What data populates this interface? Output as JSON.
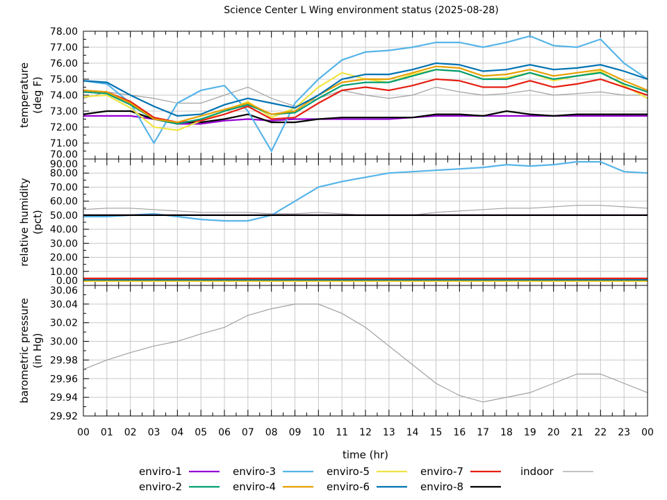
{
  "chart_data": {
    "type": "line",
    "title": "Science Center L Wing environment status (2025-08-28)",
    "xlabel": "time (hr)",
    "x_tick_labels": [
      "00",
      "01",
      "02",
      "03",
      "04",
      "05",
      "06",
      "07",
      "08",
      "09",
      "10",
      "11",
      "12",
      "13",
      "14",
      "15",
      "16",
      "17",
      "18",
      "19",
      "20",
      "21",
      "22",
      "23",
      "00"
    ],
    "x": [
      0,
      1,
      2,
      3,
      4,
      5,
      6,
      7,
      8,
      9,
      10,
      11,
      12,
      13,
      14,
      15,
      16,
      17,
      18,
      19,
      20,
      21,
      22,
      23,
      24
    ],
    "grid": true,
    "legend_position": "bottom",
    "colors": {
      "enviro-1": "#9400d3",
      "enviro-2": "#009e73",
      "enviro-3": "#56b4e9",
      "enviro-4": "#e69f00",
      "enviro-5": "#f0e442",
      "enviro-6": "#0072b2",
      "enviro-7": "#e51e10",
      "enviro-8": "#000000",
      "indoor": "#a0a0a0"
    },
    "legend": [
      "enviro-1",
      "enviro-2",
      "enviro-3",
      "enviro-4",
      "enviro-5",
      "enviro-6",
      "enviro-7",
      "enviro-8",
      "indoor"
    ],
    "panels": [
      {
        "ylabel": [
          "temperature",
          "(deg F)"
        ],
        "ylim": [
          70,
          78
        ],
        "ticks": [
          "70.00",
          "71.00",
          "72.00",
          "73.00",
          "74.00",
          "75.00",
          "76.00",
          "77.00",
          "78.00"
        ],
        "series": [
          {
            "name": "indoor",
            "values": [
              73.8,
              74.2,
              74.0,
              73.8,
              73.5,
              73.5,
              74.0,
              74.5,
              73.8,
              73.3,
              73.8,
              74.3,
              74.0,
              73.8,
              74.0,
              74.5,
              74.2,
              74.0,
              74.1,
              74.3,
              74.0,
              74.1,
              74.2,
              74.0,
              74.0
            ]
          },
          {
            "name": "enviro-1",
            "values": [
              72.7,
              72.7,
              72.7,
              72.5,
              72.2,
              72.2,
              72.4,
              72.5,
              72.4,
              72.5,
              72.5,
              72.5,
              72.5,
              72.5,
              72.6,
              72.7,
              72.7,
              72.7,
              72.7,
              72.7,
              72.7,
              72.7,
              72.7,
              72.7,
              72.7
            ]
          },
          {
            "name": "enviro-8",
            "values": [
              72.8,
              73.0,
              73.0,
              72.5,
              72.3,
              72.3,
              72.5,
              72.8,
              72.3,
              72.3,
              72.5,
              72.6,
              72.6,
              72.6,
              72.6,
              72.8,
              72.8,
              72.7,
              73.0,
              72.8,
              72.7,
              72.8,
              72.8,
              72.8,
              72.8
            ]
          },
          {
            "name": "enviro-3",
            "values": [
              74.9,
              74.7,
              73.5,
              71.0,
              73.5,
              74.3,
              74.6,
              73.0,
              70.5,
              73.5,
              75.0,
              76.2,
              76.7,
              76.8,
              77.0,
              77.3,
              77.3,
              77.0,
              77.3,
              77.7,
              77.1,
              77.0,
              77.5,
              76.0,
              75.0
            ]
          },
          {
            "name": "enviro-5",
            "values": [
              73.9,
              74.0,
              73.2,
              72.0,
              71.8,
              72.4,
              73.0,
              73.6,
              72.6,
              73.2,
              74.5,
              75.4,
              75.0,
              74.8,
              75.3,
              75.6,
              75.5,
              75.0,
              75.1,
              75.4,
              74.9,
              75.2,
              75.5,
              74.6,
              73.8
            ]
          },
          {
            "name": "enviro-7",
            "values": [
              74.3,
              74.2,
              73.6,
              72.6,
              72.3,
              72.4,
              72.8,
              73.3,
              72.5,
              72.6,
              73.5,
              74.3,
              74.5,
              74.3,
              74.6,
              75.0,
              74.9,
              74.5,
              74.5,
              74.9,
              74.5,
              74.7,
              75.0,
              74.5,
              74.0
            ]
          },
          {
            "name": "enviro-2",
            "values": [
              74.2,
              74.1,
              73.4,
              72.5,
              72.2,
              72.5,
              73.0,
              73.4,
              72.8,
              72.9,
              73.8,
              74.6,
              74.8,
              74.8,
              75.2,
              75.6,
              75.5,
              75.0,
              75.0,
              75.4,
              75.0,
              75.2,
              75.4,
              74.7,
              74.2
            ]
          },
          {
            "name": "enviro-4",
            "values": [
              74.3,
              74.2,
              73.5,
              72.5,
              72.3,
              72.7,
              73.1,
              73.5,
              72.8,
              73.0,
              74.0,
              74.8,
              75.0,
              75.0,
              75.4,
              75.8,
              75.7,
              75.2,
              75.3,
              75.6,
              75.2,
              75.4,
              75.6,
              74.9,
              74.3
            ]
          },
          {
            "name": "enviro-6",
            "values": [
              74.9,
              74.8,
              74.0,
              73.3,
              72.7,
              72.8,
              73.4,
              73.8,
              73.5,
              73.2,
              74.0,
              75.0,
              75.3,
              75.3,
              75.6,
              76.0,
              75.9,
              75.5,
              75.6,
              75.9,
              75.6,
              75.7,
              75.9,
              75.5,
              75.0
            ]
          }
        ]
      },
      {
        "ylabel": [
          "relative humidity",
          "(pct)"
        ],
        "ylim": [
          0,
          90
        ],
        "ticks": [
          "0.00",
          "10.00",
          "20.00",
          "30.00",
          "40.00",
          "50.00",
          "60.00",
          "70.00",
          "80.00",
          "90.00"
        ],
        "series": [
          {
            "name": "indoor",
            "values": [
              54,
              55,
              55,
              54,
              53,
              52,
              52,
              52,
              51,
              51,
              52,
              51,
              50,
              50,
              50,
              52,
              53,
              54,
              55,
              55,
              56,
              57,
              57,
              56,
              55
            ]
          },
          {
            "name": "enviro-3",
            "values": [
              49,
              49,
              50,
              51,
              49,
              47,
              46,
              46,
              50,
              60,
              70,
              74,
              77,
              80,
              81,
              82,
              83,
              84,
              86,
              85,
              86,
              88,
              88,
              81,
              80
            ]
          },
          {
            "name": "enviro-1",
            "values": [
              50,
              50,
              50,
              50,
              50,
              50,
              50,
              50,
              50,
              50,
              50,
              50,
              50,
              50,
              50,
              50,
              50,
              50,
              50,
              50,
              50,
              50,
              50,
              50,
              50
            ]
          },
          {
            "name": "enviro-8",
            "values": [
              50,
              50,
              50,
              50,
              50,
              50,
              50,
              50,
              50,
              50,
              50,
              50,
              50,
              50,
              50,
              50,
              50,
              50,
              50,
              50,
              50,
              50,
              50,
              50,
              50
            ]
          },
          {
            "name": "enviro-5",
            "values": [
              3,
              3,
              3,
              3,
              3,
              3,
              3,
              3,
              3,
              3,
              3,
              3,
              3,
              3,
              3,
              3,
              3,
              3,
              3,
              3,
              3,
              3,
              3,
              3,
              3
            ]
          },
          {
            "name": "enviro-4",
            "values": [
              3.5,
              3.5,
              3.5,
              3.5,
              3.5,
              3.5,
              3.5,
              3.5,
              3.5,
              3.5,
              3.5,
              3.5,
              3.5,
              3.5,
              3.5,
              3.5,
              3.5,
              3.5,
              3.5,
              3.5,
              3.5,
              3.5,
              3.5,
              3.5,
              3.5
            ]
          },
          {
            "name": "enviro-2",
            "values": [
              4,
              4,
              4,
              4,
              4,
              4,
              4,
              4,
              4,
              4,
              4,
              4,
              4,
              4,
              4,
              4,
              4,
              4,
              4,
              4,
              4,
              4,
              4,
              4,
              4
            ]
          },
          {
            "name": "enviro-6",
            "values": [
              4.2,
              4.2,
              4.2,
              4.2,
              4.2,
              4.2,
              4.2,
              4.2,
              4.2,
              4.2,
              4.2,
              4.2,
              4.2,
              4.2,
              4.2,
              4.2,
              4.2,
              4.2,
              4.2,
              4.2,
              4.2,
              4.2,
              4.2,
              4.2,
              4.2
            ]
          },
          {
            "name": "enviro-7",
            "values": [
              5,
              5,
              5,
              5,
              5,
              5,
              5,
              5,
              5,
              5,
              5,
              5,
              5,
              5,
              5,
              5,
              5,
              5,
              5,
              5,
              5,
              5,
              5,
              5,
              5
            ]
          }
        ]
      },
      {
        "ylabel": [
          "barometric pressure",
          "(in Hg)"
        ],
        "ylim": [
          29.92,
          30.06
        ],
        "ticks": [
          "29.92",
          "29.94",
          "29.96",
          "29.98",
          "30.00",
          "30.02",
          "30.04",
          "30.06"
        ],
        "series": [
          {
            "name": "indoor",
            "values": [
              29.97,
              29.98,
              29.988,
              29.995,
              30.0,
              30.008,
              30.015,
              30.028,
              30.035,
              30.04,
              30.04,
              30.03,
              30.015,
              29.995,
              29.975,
              29.955,
              29.942,
              29.935,
              29.94,
              29.945,
              29.955,
              29.965,
              29.965,
              29.955,
              29.945
            ]
          }
        ]
      }
    ]
  }
}
